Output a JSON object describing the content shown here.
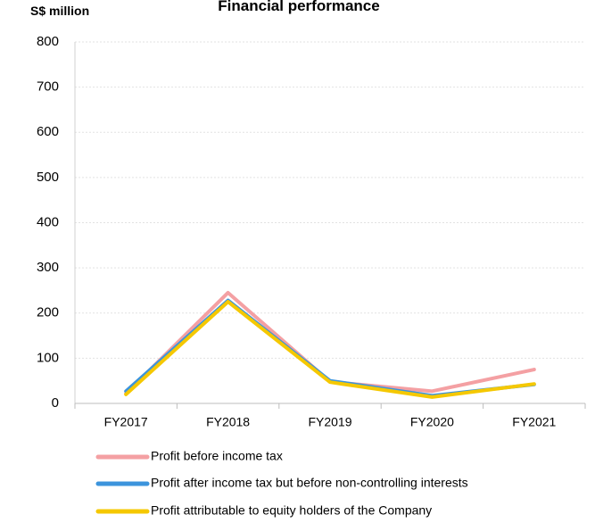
{
  "chart_data": {
    "type": "line",
    "title": "Financial performance",
    "ylabel": "S$ million",
    "xlabel": "",
    "categories": [
      "FY2017",
      "FY2018",
      "FY2019",
      "FY2020",
      "FY2021"
    ],
    "ylim": [
      0,
      800
    ],
    "yticks": [
      0,
      100,
      200,
      300,
      400,
      500,
      600,
      700,
      800
    ],
    "grid": true,
    "legend_position": "bottom",
    "series": [
      {
        "name": "Profit before income tax",
        "color": "#f4a0a3",
        "values": [
          22,
          245,
          48,
          27,
          75
        ]
      },
      {
        "name": "Profit after income tax but before non-controlling interests",
        "color": "#3c94dc",
        "values": [
          27,
          228,
          50,
          17,
          42
        ]
      },
      {
        "name": "Profit attributable to equity holders of the Company",
        "color": "#f5c800",
        "values": [
          20,
          225,
          47,
          14,
          43
        ]
      }
    ]
  }
}
